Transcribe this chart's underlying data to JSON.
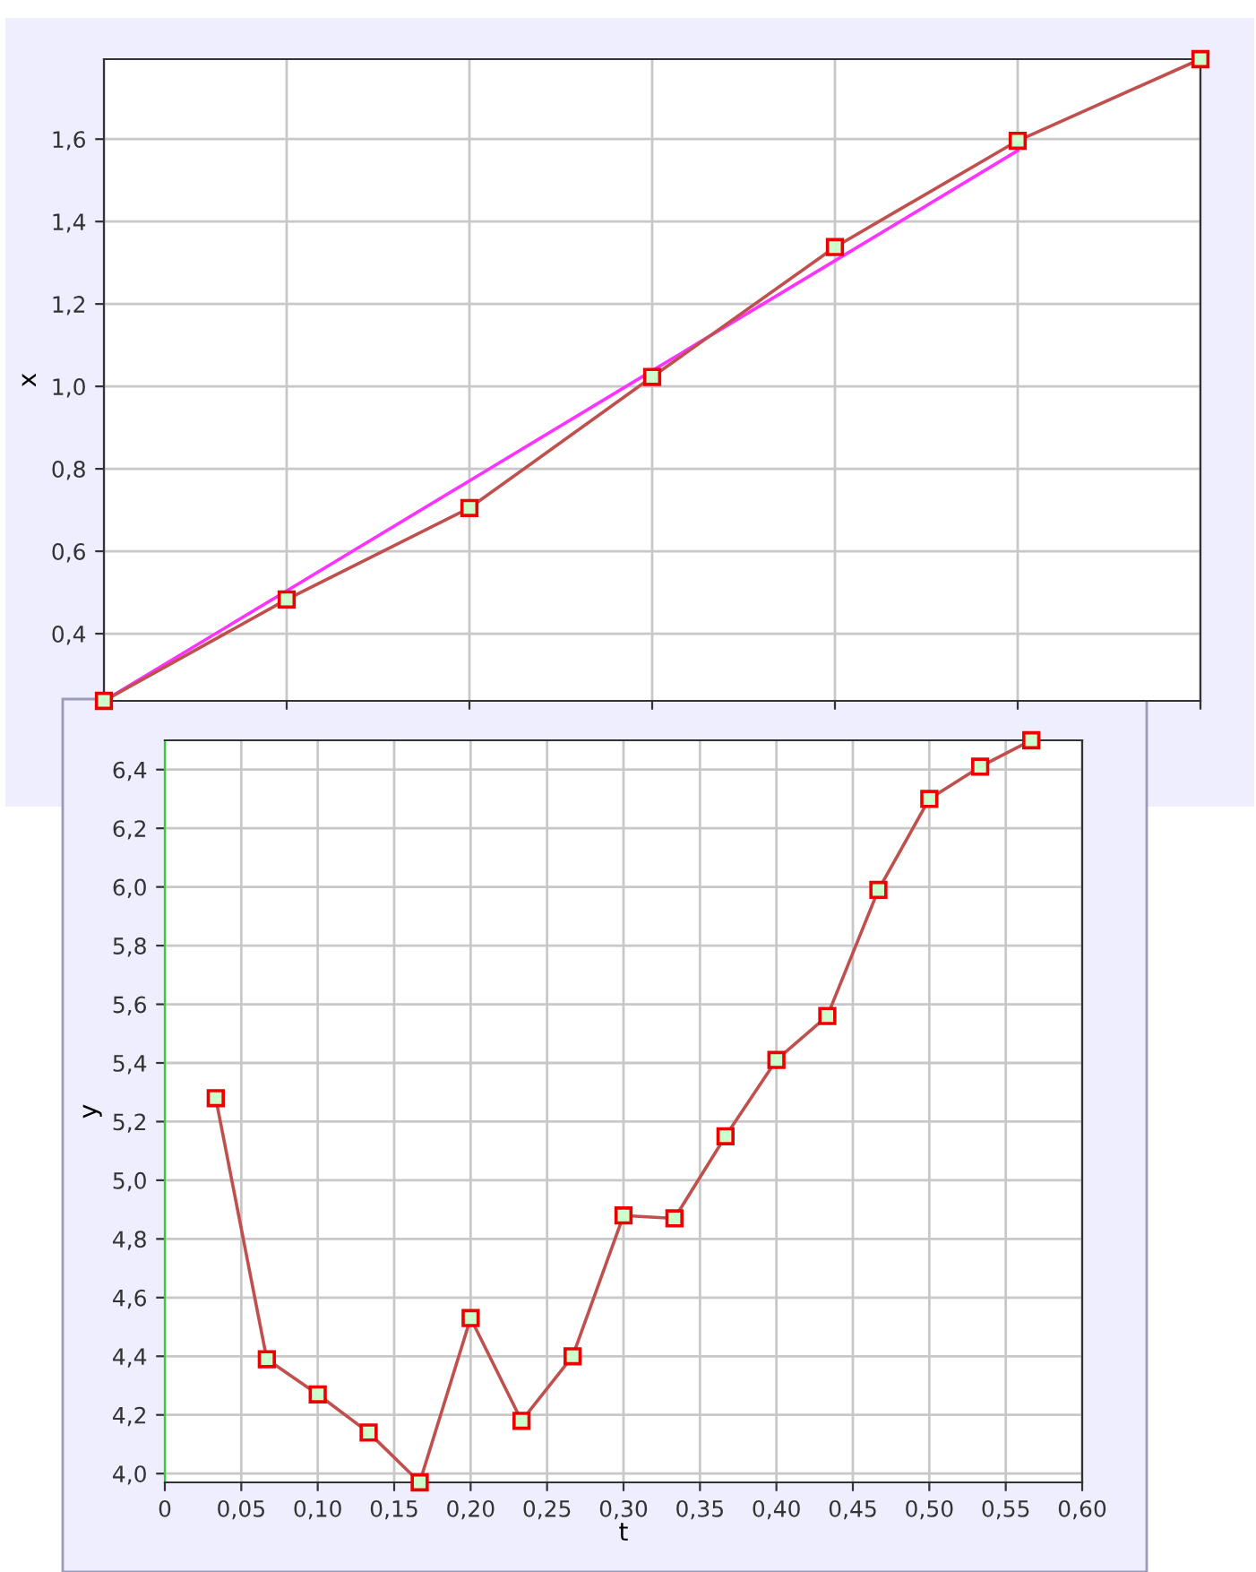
{
  "chart_data": [
    {
      "type": "line",
      "ylabel": "x",
      "categories": [
        null,
        null,
        null,
        null,
        null,
        null,
        null
      ],
      "ylim": [
        0.237,
        1.794
      ],
      "yticks": [
        {
          "value": 0.4,
          "label": "0,4"
        },
        {
          "value": 0.6,
          "label": "0,6"
        },
        {
          "value": 0.8,
          "label": "0,8"
        },
        {
          "value": 1.0,
          "label": "1,0"
        },
        {
          "value": 1.2,
          "label": "1,2"
        },
        {
          "value": 1.4,
          "label": "1,4"
        },
        {
          "value": 1.6,
          "label": "1,6"
        }
      ],
      "tick_labels": "y",
      "grid": true,
      "series": [
        {
          "type": "line",
          "color": "#ff33ff",
          "values": [
            0.237,
            0.504,
            0.771,
            1.038,
            1.305,
            1.572,
            null
          ],
          "marker": "none"
        },
        {
          "color": "#c0504d",
          "values": [
            0.237,
            0.483,
            0.705,
            1.023,
            1.338,
            1.596,
            1.794
          ],
          "marker": "square"
        }
      ]
    },
    {
      "type": "line",
      "xlabel": "t",
      "ylabel": "y",
      "x": [
        0.0333,
        0.0667,
        0.1,
        0.1333,
        0.1667,
        0.2,
        0.2333,
        0.2667,
        0.3,
        0.3333,
        0.3667,
        0.4,
        0.4333,
        0.4667,
        0.5,
        0.5333,
        0.5667
      ],
      "xlim": [
        0,
        0.6
      ],
      "xticks": [
        {
          "value": 0,
          "label": "0"
        },
        {
          "value": 0.05,
          "label": "0,05"
        },
        {
          "value": 0.1,
          "label": "0,10"
        },
        {
          "value": 0.15,
          "label": "0,15"
        },
        {
          "value": 0.2,
          "label": "0,20"
        },
        {
          "value": 0.25,
          "label": "0,25"
        },
        {
          "value": 0.3,
          "label": "0,30"
        },
        {
          "value": 0.35,
          "label": "0,35"
        },
        {
          "value": 0.4,
          "label": "0,40"
        },
        {
          "value": 0.45,
          "label": "0,45"
        },
        {
          "value": 0.5,
          "label": "0,50"
        },
        {
          "value": 0.55,
          "label": "0,55"
        },
        {
          "value": 0.6,
          "label": "0,60"
        }
      ],
      "ylim": [
        3.97,
        6.5
      ],
      "yticks": [
        {
          "value": 4.0,
          "label": "4,0"
        },
        {
          "value": 4.2,
          "label": "4,2"
        },
        {
          "value": 4.4,
          "label": "4,4"
        },
        {
          "value": 4.6,
          "label": "4,6"
        },
        {
          "value": 4.8,
          "label": "4,8"
        },
        {
          "value": 5.0,
          "label": "5,0"
        },
        {
          "value": 5.2,
          "label": "5,2"
        },
        {
          "value": 5.4,
          "label": "5,4"
        },
        {
          "value": 5.6,
          "label": "5,6"
        },
        {
          "value": 5.8,
          "label": "5,8"
        },
        {
          "value": 6.0,
          "label": "6,0"
        },
        {
          "value": 6.2,
          "label": "6,2"
        },
        {
          "value": 6.4,
          "label": "6,4"
        }
      ],
      "grid": true,
      "marker": "square",
      "series": [
        {
          "color": "#c0504d",
          "values": [
            5.28,
            4.39,
            4.27,
            4.14,
            3.97,
            4.53,
            4.18,
            4.4,
            4.88,
            4.87,
            5.15,
            5.41,
            5.56,
            5.99,
            6.3,
            6.41,
            6.5
          ]
        }
      ]
    }
  ]
}
